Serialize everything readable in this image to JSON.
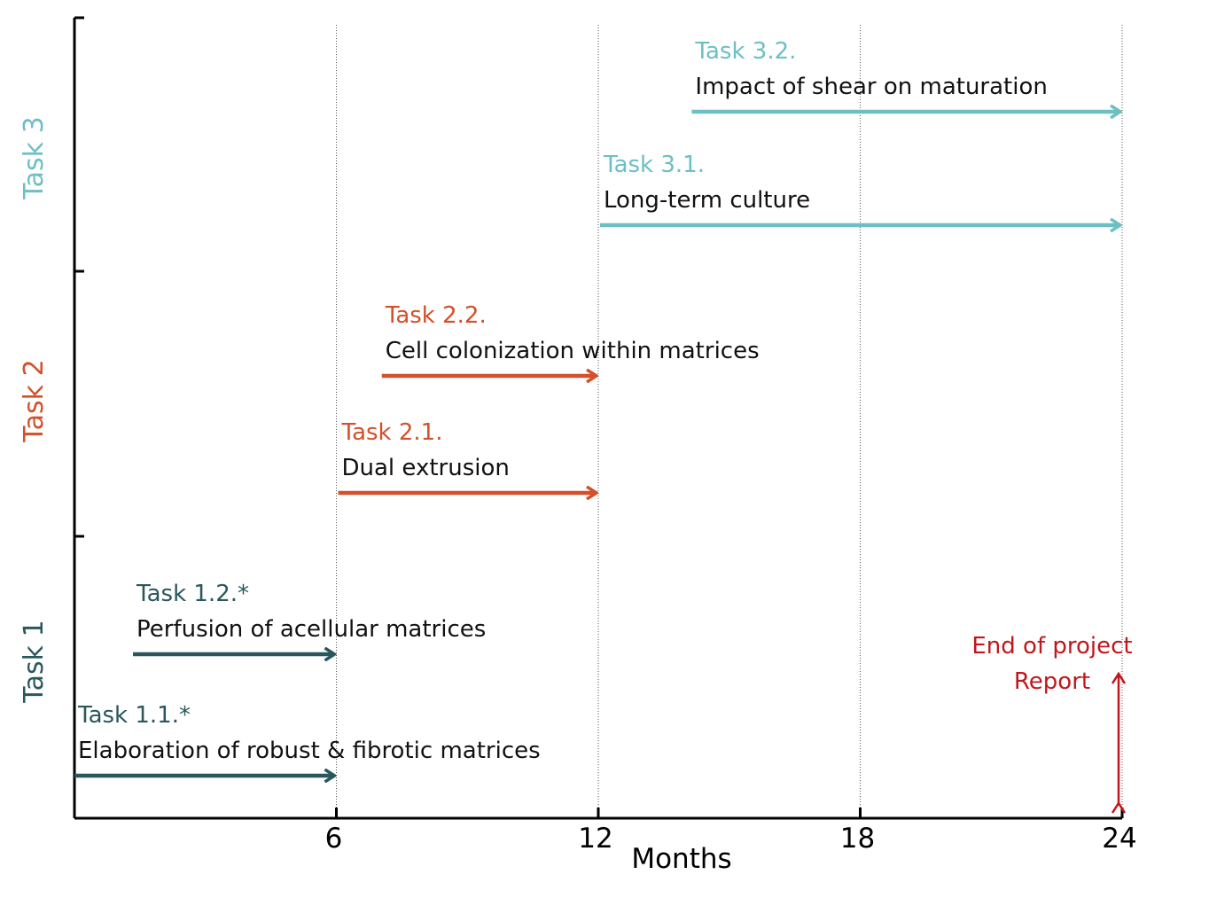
{
  "colors": {
    "task1": "#2a575c",
    "task2": "#d3502a",
    "task3": "#6dbfc4",
    "note": "#c0171d",
    "axis": "#000000",
    "grid": "#555555"
  },
  "chart_data": {
    "type": "gantt",
    "xlabel": "Months",
    "xlim": [
      0,
      24
    ],
    "x_ticks": [
      6,
      12,
      18,
      24
    ],
    "x_tick_labels": [
      "6",
      "12",
      "18",
      "24"
    ],
    "grid": "vertical dotted lines at 6, 12, 18, 24",
    "groups": [
      {
        "label": "Task 1",
        "color_key": "task1"
      },
      {
        "label": "Task 2",
        "color_key": "task2"
      },
      {
        "label": "Task 3",
        "color_key": "task3"
      }
    ],
    "tasks": [
      {
        "id": "Task 1.1.*",
        "name": "Elaboration of robust & fibrotic matrices",
        "group": 0,
        "start": 0,
        "end": 6
      },
      {
        "id": "Task 1.2.*",
        "name": "Perfusion of acellular matrices",
        "group": 0,
        "start": 1.3,
        "end": 6
      },
      {
        "id": "Task 2.1.",
        "name": "Dual extrusion",
        "group": 1,
        "start": 6,
        "end": 12
      },
      {
        "id": "Task 2.2.",
        "name": "Cell colonization within matrices",
        "group": 1,
        "start": 7,
        "end": 12
      },
      {
        "id": "Task 3.1.",
        "name": "Long-term culture",
        "group": 2,
        "start": 12,
        "end": 24
      },
      {
        "id": "Task 3.2.",
        "name": "Impact of shear on maturation",
        "group": 2,
        "start": 14.1,
        "end": 24
      }
    ],
    "annotations": [
      {
        "lines": [
          "End of project",
          "Report"
        ],
        "x": 24,
        "type": "double-arrow"
      }
    ]
  }
}
